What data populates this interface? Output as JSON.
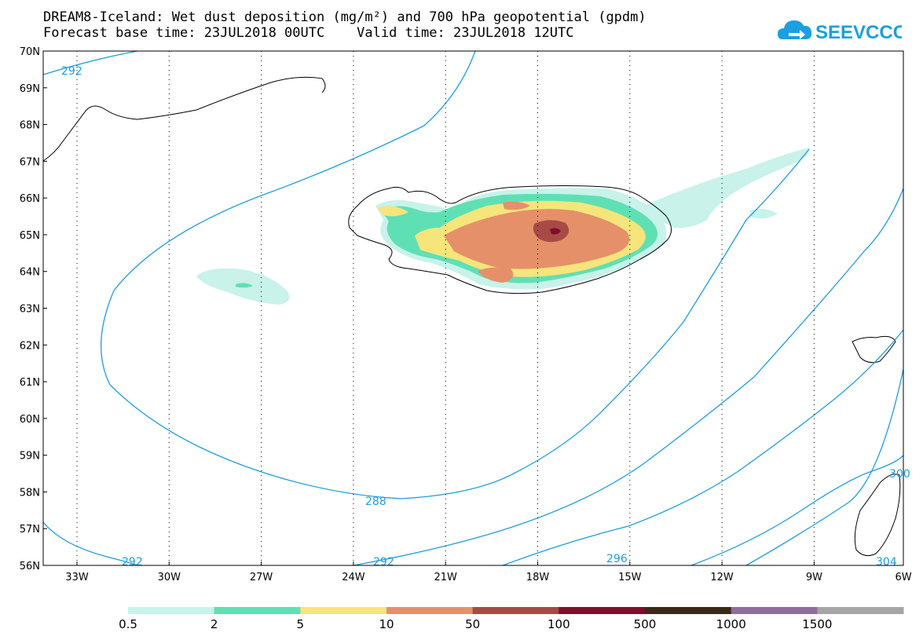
{
  "header": {
    "title_line1": "DREAM8-Iceland: Wet dust deposition (mg/m²) and 700 hPa geopotential (gpdm)",
    "title_line2": "Forecast base time: 23JUL2018 00UTC    Valid time: 23JUL2018 12UTC",
    "logo_text": "SEEVCCC",
    "logo_icon": "cloud-arrow-icon",
    "logo_color": "#1aa0e0"
  },
  "map": {
    "lat_labels": [
      "70N",
      "69N",
      "68N",
      "67N",
      "66N",
      "65N",
      "64N",
      "63N",
      "62N",
      "61N",
      "60N",
      "59N",
      "58N",
      "57N",
      "56N"
    ],
    "lon_labels": [
      "33W",
      "30W",
      "27W",
      "24W",
      "21W",
      "18W",
      "15W",
      "12W",
      "9W",
      "6W"
    ],
    "contour_color": "#1e9ee0",
    "contour_labels": [
      "292",
      "288",
      "292",
      "292",
      "296",
      "300",
      "304"
    ]
  },
  "colorbar": {
    "colors": [
      "#c8f2ea",
      "#5fe0b4",
      "#f5e57a",
      "#e6906a",
      "#a84a46",
      "#7e0e2a",
      "#3a2818",
      "#906c9c",
      "#a6a6a6"
    ],
    "labels": [
      "0.5",
      "2",
      "5",
      "10",
      "50",
      "100",
      "500",
      "1000",
      "1500"
    ]
  }
}
